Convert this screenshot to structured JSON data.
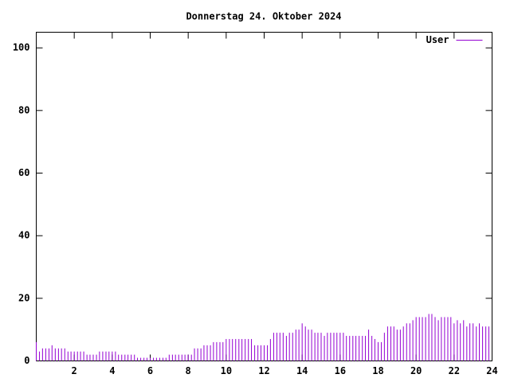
{
  "chart_data": {
    "type": "impulses",
    "title": "Donnerstag 24. Oktober 2024",
    "x": [
      0,
      0.17,
      0.33,
      0.5,
      0.67,
      0.83,
      1,
      1.17,
      1.33,
      1.5,
      1.67,
      1.83,
      2,
      2.17,
      2.33,
      2.5,
      2.67,
      2.83,
      3,
      3.17,
      3.33,
      3.5,
      3.67,
      3.83,
      4,
      4.17,
      4.33,
      4.5,
      4.67,
      4.83,
      5,
      5.17,
      5.33,
      5.5,
      5.67,
      5.83,
      6,
      6.17,
      6.33,
      6.5,
      6.67,
      6.83,
      7,
      7.17,
      7.33,
      7.5,
      7.67,
      7.83,
      8,
      8.17,
      8.33,
      8.5,
      8.67,
      8.83,
      9,
      9.17,
      9.33,
      9.5,
      9.67,
      9.83,
      10,
      10.17,
      10.33,
      10.5,
      10.67,
      10.83,
      11,
      11.17,
      11.33,
      11.5,
      11.67,
      11.83,
      12,
      12.17,
      12.33,
      12.5,
      12.67,
      12.83,
      13,
      13.17,
      13.33,
      13.5,
      13.67,
      13.83,
      14,
      14.17,
      14.33,
      14.5,
      14.67,
      14.83,
      15,
      15.17,
      15.33,
      15.5,
      15.67,
      15.83,
      16,
      16.17,
      16.33,
      16.5,
      16.67,
      16.83,
      17,
      17.17,
      17.33,
      17.5,
      17.67,
      17.83,
      18,
      18.17,
      18.33,
      18.5,
      18.67,
      18.83,
      19,
      19.17,
      19.33,
      19.5,
      19.67,
      19.83,
      20,
      20.17,
      20.33,
      20.5,
      20.67,
      20.83,
      21,
      21.17,
      21.33,
      21.5,
      21.67,
      21.83,
      22,
      22.17,
      22.33,
      22.5,
      22.67,
      22.83,
      23,
      23.17,
      23.33,
      23.5,
      23.67,
      23.83
    ],
    "series": [
      {
        "name": "User",
        "color": "#9400d3",
        "values": [
          6,
          3,
          4,
          4,
          4,
          5,
          4,
          4,
          4,
          4,
          3,
          3,
          3,
          3,
          3,
          3,
          2,
          2,
          2,
          2,
          3,
          3,
          3,
          3,
          3,
          3,
          2,
          2,
          2,
          2,
          2,
          2,
          1,
          1,
          1,
          1,
          1,
          1,
          1,
          1,
          1,
          1,
          2,
          2,
          2,
          2,
          2,
          2,
          2,
          2,
          4,
          4,
          4,
          5,
          5,
          5,
          6,
          6,
          6,
          6,
          7,
          7,
          7,
          7,
          7,
          7,
          7,
          7,
          7,
          5,
          5,
          5,
          5,
          5,
          7,
          9,
          9,
          9,
          9,
          8,
          9,
          9,
          10,
          10,
          12,
          11,
          10,
          10,
          9,
          9,
          9,
          8,
          9,
          9,
          9,
          9,
          9,
          9,
          8,
          8,
          8,
          8,
          8,
          8,
          8,
          10,
          8,
          7,
          6,
          6,
          9,
          11,
          11,
          11,
          10,
          10,
          11,
          12,
          12,
          13,
          14,
          14,
          14,
          14,
          15,
          15,
          14,
          13,
          14,
          14,
          14,
          14,
          12,
          13,
          12,
          13,
          11,
          12,
          12,
          11,
          12,
          11,
          11,
          11
        ]
      }
    ],
    "xlim": [
      0,
      24
    ],
    "xticks": [
      2,
      4,
      6,
      8,
      10,
      12,
      14,
      16,
      18,
      20,
      22,
      24
    ],
    "ylim": [
      0,
      105
    ],
    "yticks": [
      0,
      20,
      40,
      60,
      80,
      100
    ],
    "legend": "top-right"
  }
}
